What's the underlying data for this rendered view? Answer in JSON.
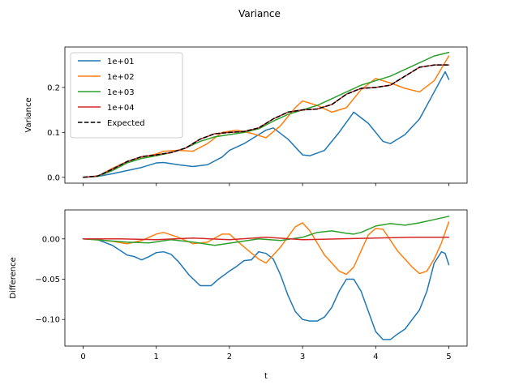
{
  "chart_data": {
    "type": "line",
    "title": "Variance",
    "xlabel": "t",
    "x_ticks": [
      "0",
      "1",
      "2",
      "3",
      "4",
      "5"
    ],
    "xlim": [
      -0.25,
      5.25
    ],
    "legend_placement": "upper left (top panel)",
    "colors": {
      "1e+01": "#1f77b4",
      "1e+02": "#ff7f0e",
      "1e+03": "#2ca02c",
      "1e+04": "#d62728",
      "Expected": "#000000"
    },
    "panels": [
      {
        "ylabel": "Variance",
        "ylim": [
          -0.013,
          0.29
        ],
        "y_ticks": [
          "0.0",
          "0.1",
          "0.2"
        ],
        "y_tick_values": [
          0.0,
          0.1,
          0.2
        ],
        "legend": [
          "1e+01",
          "1e+02",
          "1e+03",
          "1e+04",
          "Expected"
        ],
        "series": [
          {
            "name": "1e+01",
            "style": "solid",
            "x": [
              0,
              0.2,
              0.4,
              0.6,
              0.8,
              1.0,
              1.1,
              1.3,
              1.5,
              1.7,
              1.9,
              2.0,
              2.2,
              2.4,
              2.5,
              2.6,
              2.8,
              3.0,
              3.1,
              3.3,
              3.5,
              3.7,
              3.9,
              4.1,
              4.2,
              4.4,
              4.6,
              4.8,
              4.95,
              5.0
            ],
            "y": [
              0,
              0.002,
              0.008,
              0.015,
              0.022,
              0.032,
              0.033,
              0.028,
              0.024,
              0.028,
              0.045,
              0.06,
              0.075,
              0.095,
              0.105,
              0.11,
              0.085,
              0.05,
              0.048,
              0.06,
              0.1,
              0.145,
              0.12,
              0.08,
              0.075,
              0.095,
              0.13,
              0.19,
              0.235,
              0.218
            ]
          },
          {
            "name": "1e+02",
            "style": "solid",
            "x": [
              0,
              0.2,
              0.4,
              0.6,
              0.8,
              1.0,
              1.1,
              1.3,
              1.5,
              1.7,
              1.9,
              2.1,
              2.3,
              2.5,
              2.7,
              2.9,
              3.0,
              3.2,
              3.4,
              3.6,
              3.8,
              4.0,
              4.2,
              4.4,
              4.6,
              4.8,
              5.0
            ],
            "y": [
              0,
              0.002,
              0.02,
              0.035,
              0.045,
              0.052,
              0.058,
              0.06,
              0.058,
              0.075,
              0.1,
              0.105,
              0.098,
              0.088,
              0.115,
              0.155,
              0.17,
              0.16,
              0.145,
              0.155,
              0.195,
              0.22,
              0.21,
              0.198,
              0.19,
              0.215,
              0.27
            ]
          },
          {
            "name": "1e+03",
            "style": "solid",
            "x": [
              0,
              0.2,
              0.4,
              0.6,
              0.8,
              1.0,
              1.2,
              1.4,
              1.6,
              1.8,
              2.0,
              2.2,
              2.4,
              2.6,
              2.8,
              3.0,
              3.2,
              3.4,
              3.6,
              3.8,
              4.0,
              4.2,
              4.4,
              4.6,
              4.8,
              5.0
            ],
            "y": [
              0,
              0.002,
              0.015,
              0.032,
              0.042,
              0.048,
              0.055,
              0.065,
              0.08,
              0.09,
              0.095,
              0.1,
              0.108,
              0.125,
              0.14,
              0.15,
              0.16,
              0.175,
              0.19,
              0.205,
              0.215,
              0.225,
              0.24,
              0.255,
              0.27,
              0.278
            ]
          },
          {
            "name": "1e+04",
            "style": "solid",
            "x": [
              0,
              0.2,
              0.4,
              0.6,
              0.8,
              1.0,
              1.2,
              1.4,
              1.6,
              1.8,
              2.0,
              2.2,
              2.4,
              2.6,
              2.8,
              3.0,
              3.2,
              3.4,
              3.6,
              3.8,
              4.0,
              4.2,
              4.4,
              4.6,
              4.8,
              5.0
            ],
            "y": [
              0,
              0.003,
              0.018,
              0.035,
              0.046,
              0.05,
              0.055,
              0.065,
              0.085,
              0.097,
              0.1,
              0.102,
              0.11,
              0.13,
              0.145,
              0.15,
              0.152,
              0.162,
              0.185,
              0.198,
              0.2,
              0.205,
              0.225,
              0.245,
              0.25,
              0.25
            ]
          },
          {
            "name": "Expected",
            "style": "dashed",
            "x": [
              0,
              0.2,
              0.4,
              0.6,
              0.8,
              1.0,
              1.2,
              1.4,
              1.6,
              1.8,
              2.0,
              2.2,
              2.4,
              2.6,
              2.8,
              3.0,
              3.2,
              3.4,
              3.6,
              3.8,
              4.0,
              4.2,
              4.4,
              4.6,
              4.8,
              5.0
            ],
            "y": [
              0,
              0.003,
              0.018,
              0.035,
              0.046,
              0.05,
              0.055,
              0.065,
              0.085,
              0.097,
              0.1,
              0.102,
              0.11,
              0.13,
              0.145,
              0.15,
              0.152,
              0.162,
              0.185,
              0.198,
              0.2,
              0.205,
              0.225,
              0.245,
              0.25,
              0.25
            ]
          }
        ]
      },
      {
        "ylabel": "Difference",
        "ylim": [
          -0.133,
          0.036
        ],
        "y_ticks": [
          "0.00",
          "−0.05",
          "−0.10"
        ],
        "y_tick_values": [
          0.0,
          -0.05,
          -0.1
        ],
        "series": [
          {
            "name": "1e+01",
            "style": "solid",
            "x": [
              0,
              0.2,
              0.4,
              0.6,
              0.7,
              0.8,
              0.9,
              1.0,
              1.1,
              1.2,
              1.3,
              1.45,
              1.6,
              1.75,
              1.85,
              2.0,
              2.1,
              2.2,
              2.3,
              2.4,
              2.5,
              2.6,
              2.7,
              2.8,
              2.9,
              3.0,
              3.1,
              3.2,
              3.3,
              3.4,
              3.5,
              3.6,
              3.7,
              3.8,
              3.9,
              4.0,
              4.1,
              4.2,
              4.3,
              4.4,
              4.5,
              4.6,
              4.7,
              4.8,
              4.9,
              4.95,
              5.0
            ],
            "y": [
              0,
              -0.001,
              -0.008,
              -0.02,
              -0.022,
              -0.026,
              -0.022,
              -0.017,
              -0.016,
              -0.019,
              -0.028,
              -0.045,
              -0.058,
              -0.058,
              -0.05,
              -0.04,
              -0.034,
              -0.027,
              -0.026,
              -0.016,
              -0.018,
              -0.025,
              -0.045,
              -0.07,
              -0.09,
              -0.1,
              -0.102,
              -0.102,
              -0.097,
              -0.085,
              -0.065,
              -0.05,
              -0.05,
              -0.065,
              -0.09,
              -0.115,
              -0.125,
              -0.125,
              -0.118,
              -0.112,
              -0.1,
              -0.088,
              -0.065,
              -0.03,
              -0.016,
              -0.018,
              -0.032
            ]
          },
          {
            "name": "1e+02",
            "style": "solid",
            "x": [
              0,
              0.2,
              0.4,
              0.6,
              0.8,
              1.0,
              1.1,
              1.3,
              1.5,
              1.7,
              1.9,
              2.0,
              2.2,
              2.4,
              2.5,
              2.7,
              2.9,
              3.0,
              3.1,
              3.3,
              3.5,
              3.6,
              3.7,
              3.9,
              4.0,
              4.1,
              4.3,
              4.5,
              4.6,
              4.7,
              4.8,
              4.9,
              5.0
            ],
            "y": [
              0,
              -0.001,
              -0.003,
              -0.006,
              -0.002,
              0.006,
              0.008,
              0.002,
              -0.006,
              -0.004,
              0.006,
              0.006,
              -0.01,
              -0.025,
              -0.03,
              -0.01,
              0.015,
              0.02,
              0.01,
              -0.02,
              -0.04,
              -0.044,
              -0.035,
              0.005,
              0.013,
              0.012,
              -0.015,
              -0.035,
              -0.043,
              -0.04,
              -0.025,
              -0.005,
              0.021
            ]
          },
          {
            "name": "1e+03",
            "style": "solid",
            "x": [
              0,
              0.3,
              0.6,
              0.9,
              1.2,
              1.5,
              1.8,
              2.1,
              2.4,
              2.7,
              3.0,
              3.2,
              3.4,
              3.6,
              3.7,
              3.8,
              4.0,
              4.2,
              4.4,
              4.6,
              4.8,
              5.0
            ],
            "y": [
              0,
              -0.002,
              -0.004,
              -0.005,
              -0.001,
              -0.004,
              -0.008,
              -0.004,
              0.0,
              -0.002,
              0.002,
              0.008,
              0.01,
              0.007,
              0.006,
              0.008,
              0.016,
              0.019,
              0.017,
              0.02,
              0.024,
              0.028
            ]
          },
          {
            "name": "1e+04",
            "style": "solid",
            "x": [
              0,
              0.5,
              1.0,
              1.5,
              2.0,
              2.5,
              3.0,
              3.5,
              4.0,
              4.5,
              5.0
            ],
            "y": [
              0,
              0.0,
              -0.001,
              0.001,
              -0.001,
              0.002,
              -0.001,
              0.0,
              0.001,
              0.002,
              0.002
            ]
          }
        ]
      }
    ]
  }
}
